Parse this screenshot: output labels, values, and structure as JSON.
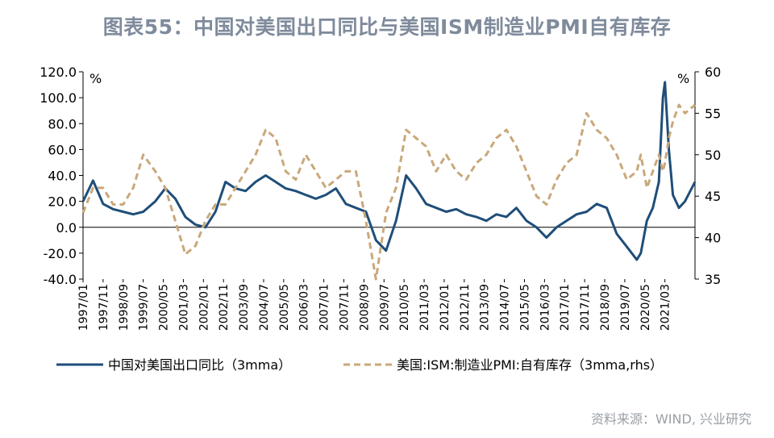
{
  "title": "图表55：中国对美国出口同比与美国ISM制造业PMI自有库存",
  "source": "资料来源：WIND, 兴业研究",
  "colors": {
    "series1": "#1f4e79",
    "series2": "#c9a87a",
    "axis": "#000000"
  },
  "chart_data": {
    "type": "line",
    "y_left": {
      "unit": "%",
      "ylim": [
        -40,
        120
      ],
      "ticks": [
        "120.0",
        "100.0",
        "80.0",
        "60.0",
        "40.0",
        "20.0",
        "0.0",
        "-20.0",
        "-40.0"
      ]
    },
    "y_right": {
      "unit": "%",
      "ylim": [
        35,
        60
      ],
      "ticks": [
        "60",
        "55",
        "50",
        "45",
        "40",
        "35"
      ]
    },
    "x_range": [
      "1997/01",
      "2022/06"
    ],
    "x_ticks": [
      "1997/01",
      "1997/11",
      "1998/09",
      "1999/07",
      "2000/05",
      "2001/03",
      "2002/01",
      "2002/11",
      "2003/09",
      "2004/07",
      "2005/05",
      "2006/03",
      "2007/01",
      "2007/11",
      "2008/09",
      "2009/07",
      "2010/05",
      "2011/03",
      "2012/01",
      "2012/11",
      "2013/09",
      "2014/07",
      "2015/05",
      "2016/03",
      "2017/01",
      "2017/11",
      "2018/09",
      "2019/07",
      "2020/05",
      "2021/03"
    ],
    "series": [
      {
        "name": "中国对美国出口同比（3mma）",
        "axis": "left",
        "style": "solid",
        "x": [
          "1997/01",
          "1997/06",
          "1997/11",
          "1998/04",
          "1998/09",
          "1999/02",
          "1999/07",
          "2000/01",
          "2000/06",
          "2000/11",
          "2001/04",
          "2001/09",
          "2002/02",
          "2002/07",
          "2002/12",
          "2003/05",
          "2003/10",
          "2004/03",
          "2004/08",
          "2005/01",
          "2005/06",
          "2005/11",
          "2006/04",
          "2006/09",
          "2007/02",
          "2007/07",
          "2007/12",
          "2008/05",
          "2008/10",
          "2009/03",
          "2009/08",
          "2010/01",
          "2010/06",
          "2010/11",
          "2011/04",
          "2011/09",
          "2012/02",
          "2012/07",
          "2012/12",
          "2013/05",
          "2013/10",
          "2014/03",
          "2014/08",
          "2015/01",
          "2015/06",
          "2015/11",
          "2016/04",
          "2016/09",
          "2017/02",
          "2017/07",
          "2017/12",
          "2018/05",
          "2018/10",
          "2019/03",
          "2019/08",
          "2020/01",
          "2020/03",
          "2020/06",
          "2020/09",
          "2020/12",
          "2021/02",
          "2021/03",
          "2021/05",
          "2021/07",
          "2021/10",
          "2022/01",
          "2022/06"
        ],
        "values": [
          20,
          36,
          18,
          14,
          12,
          10,
          12,
          20,
          30,
          22,
          8,
          2,
          0,
          12,
          35,
          30,
          28,
          35,
          40,
          35,
          30,
          28,
          25,
          22,
          25,
          30,
          18,
          15,
          12,
          -10,
          -18,
          5,
          40,
          30,
          18,
          15,
          12,
          14,
          10,
          8,
          5,
          10,
          8,
          15,
          5,
          0,
          -8,
          0,
          5,
          10,
          12,
          18,
          15,
          -5,
          -15,
          -25,
          -20,
          5,
          15,
          35,
          100,
          112,
          60,
          25,
          15,
          20,
          35
        ]
      },
      {
        "name": "美国:ISM:制造业PMI:自有库存（3mma,rhs）",
        "axis": "right",
        "style": "dashed",
        "x": [
          "1997/01",
          "1997/06",
          "1997/11",
          "1998/04",
          "1998/09",
          "1999/02",
          "1999/07",
          "2000/01",
          "2000/06",
          "2000/11",
          "2001/04",
          "2001/09",
          "2002/02",
          "2002/07",
          "2002/12",
          "2003/05",
          "2003/10",
          "2004/03",
          "2004/08",
          "2005/01",
          "2005/06",
          "2005/11",
          "2006/04",
          "2006/09",
          "2007/02",
          "2007/07",
          "2007/12",
          "2008/05",
          "2008/10",
          "2009/03",
          "2009/08",
          "2010/01",
          "2010/06",
          "2010/11",
          "2011/04",
          "2011/09",
          "2012/02",
          "2012/07",
          "2012/12",
          "2013/05",
          "2013/10",
          "2014/03",
          "2014/08",
          "2015/01",
          "2015/06",
          "2015/11",
          "2016/04",
          "2016/09",
          "2017/02",
          "2017/07",
          "2017/12",
          "2018/05",
          "2018/10",
          "2019/03",
          "2019/08",
          "2020/01",
          "2020/03",
          "2020/06",
          "2020/09",
          "2020/12",
          "2021/02",
          "2021/03",
          "2021/05",
          "2021/07",
          "2021/10",
          "2022/01",
          "2022/06"
        ],
        "values": [
          43,
          46,
          46,
          44,
          44,
          46,
          50,
          48,
          46,
          42,
          38,
          39,
          42,
          44,
          44,
          46,
          48,
          50,
          53,
          52,
          48,
          47,
          50,
          48,
          46,
          47,
          48,
          48,
          42,
          35,
          43,
          46,
          53,
          52,
          51,
          48,
          50,
          48,
          47,
          49,
          50,
          52,
          53,
          51,
          48,
          45,
          44,
          47,
          49,
          50,
          55,
          53,
          52,
          50,
          47,
          48,
          50,
          46,
          48,
          50,
          48,
          49,
          52,
          54,
          56,
          55,
          56
        ]
      }
    ]
  }
}
